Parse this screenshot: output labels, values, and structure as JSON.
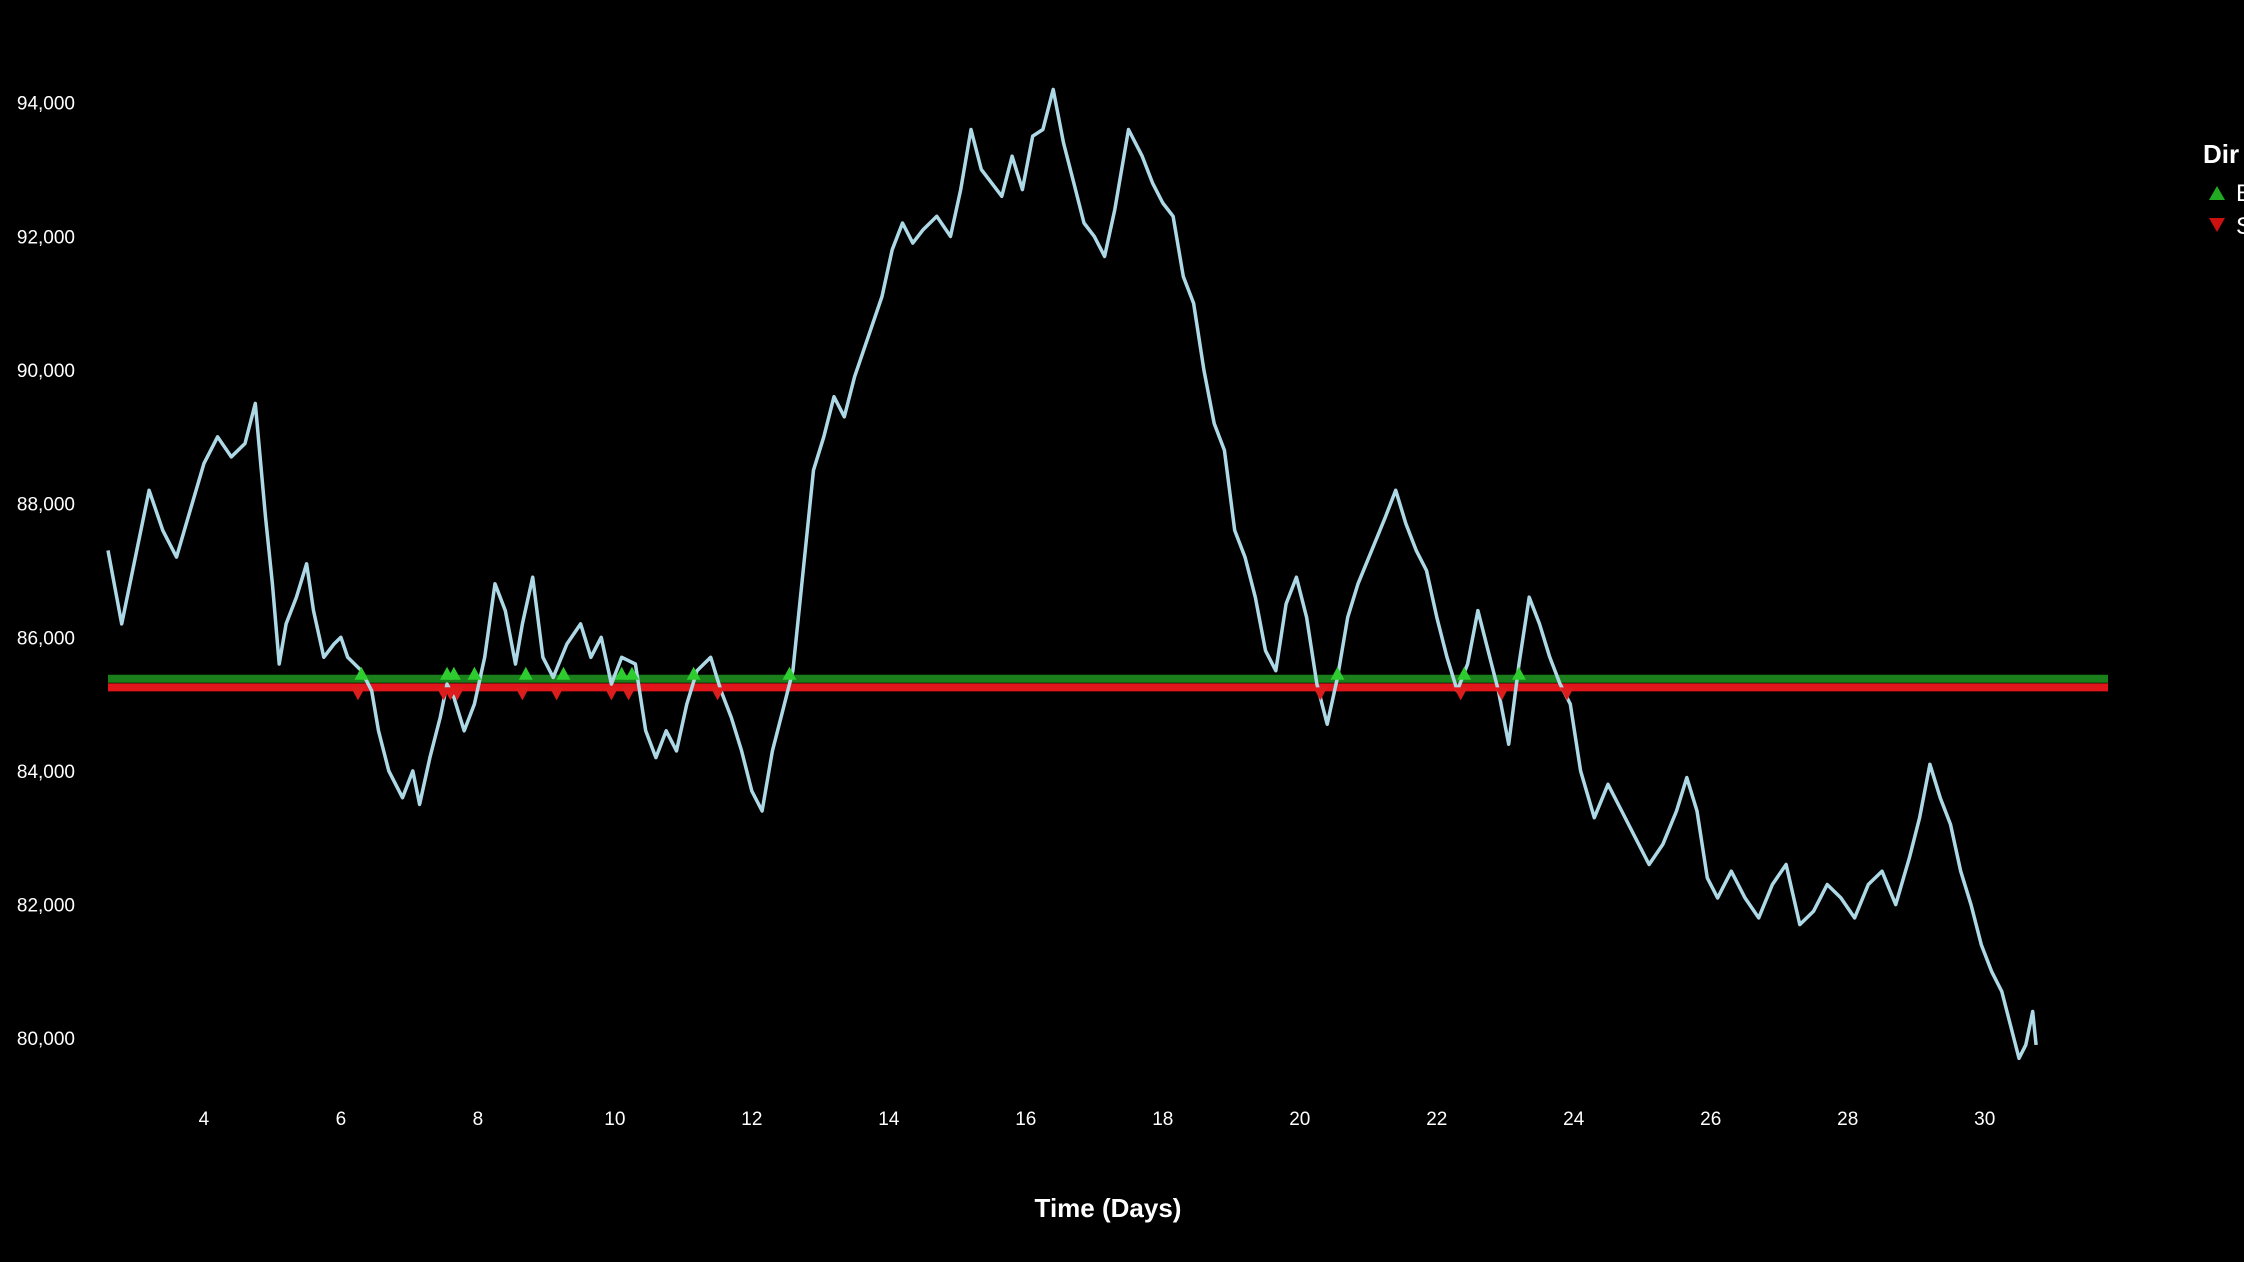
{
  "chart_data": {
    "type": "line",
    "title": "",
    "xlabel": "Time (Days)",
    "ylabel": "",
    "xlim": [
      2.6,
      31.8
    ],
    "ylim": [
      79300,
      94400
    ],
    "x_ticks": [
      4,
      6,
      8,
      10,
      12,
      14,
      16,
      18,
      20,
      22,
      24,
      26,
      28,
      30
    ],
    "x_tick_labels": [
      "4",
      "6",
      "8",
      "10",
      "12",
      "14",
      "16",
      "18",
      "20",
      "22",
      "24",
      "26",
      "28",
      "30"
    ],
    "y_ticks": [
      80000,
      82000,
      84000,
      86000,
      88000,
      90000,
      92000,
      94000
    ],
    "y_tick_labels": [
      "80,000",
      "82,000",
      "84,000",
      "86,000",
      "88,000",
      "90,000",
      "92,000",
      "94,000"
    ],
    "grid": false,
    "background": "#000000",
    "legend": {
      "title": "Dir",
      "placement": "right",
      "entries": [
        {
          "label": "B",
          "marker": "triangle-up",
          "color": "#22aa22"
        },
        {
          "label": "S",
          "marker": "triangle-down",
          "color": "#cc1111"
        }
      ]
    },
    "price_series": {
      "name": "",
      "color": "#add8e6",
      "points": [
        [
          2.6,
          87300
        ],
        [
          2.8,
          86200
        ],
        [
          3.0,
          87200
        ],
        [
          3.2,
          88200
        ],
        [
          3.4,
          87600
        ],
        [
          3.6,
          87200
        ],
        [
          3.8,
          87900
        ],
        [
          4.0,
          88600
        ],
        [
          4.2,
          89000
        ],
        [
          4.4,
          88700
        ],
        [
          4.6,
          88900
        ],
        [
          4.75,
          89500
        ],
        [
          4.9,
          87800
        ],
        [
          5.0,
          86800
        ],
        [
          5.1,
          85600
        ],
        [
          5.2,
          86200
        ],
        [
          5.35,
          86600
        ],
        [
          5.5,
          87100
        ],
        [
          5.6,
          86400
        ],
        [
          5.75,
          85700
        ],
        [
          5.9,
          85900
        ],
        [
          6.0,
          86000
        ],
        [
          6.1,
          85700
        ],
        [
          6.3,
          85500
        ],
        [
          6.45,
          85200
        ],
        [
          6.55,
          84600
        ],
        [
          6.7,
          84000
        ],
        [
          6.9,
          83600
        ],
        [
          7.05,
          84000
        ],
        [
          7.15,
          83500
        ],
        [
          7.3,
          84200
        ],
        [
          7.45,
          84800
        ],
        [
          7.55,
          85300
        ],
        [
          7.65,
          85100
        ],
        [
          7.8,
          84600
        ],
        [
          7.95,
          85000
        ],
        [
          8.1,
          85700
        ],
        [
          8.25,
          86800
        ],
        [
          8.4,
          86400
        ],
        [
          8.55,
          85600
        ],
        [
          8.65,
          86200
        ],
        [
          8.8,
          86900
        ],
        [
          8.95,
          85700
        ],
        [
          9.1,
          85400
        ],
        [
          9.3,
          85900
        ],
        [
          9.5,
          86200
        ],
        [
          9.65,
          85700
        ],
        [
          9.8,
          86000
        ],
        [
          9.95,
          85300
        ],
        [
          10.1,
          85700
        ],
        [
          10.3,
          85600
        ],
        [
          10.45,
          84600
        ],
        [
          10.6,
          84200
        ],
        [
          10.75,
          84600
        ],
        [
          10.9,
          84300
        ],
        [
          11.05,
          85000
        ],
        [
          11.2,
          85500
        ],
        [
          11.4,
          85700
        ],
        [
          11.55,
          85200
        ],
        [
          11.7,
          84800
        ],
        [
          11.85,
          84300
        ],
        [
          12.0,
          83700
        ],
        [
          12.15,
          83400
        ],
        [
          12.3,
          84300
        ],
        [
          12.45,
          84900
        ],
        [
          12.6,
          85500
        ],
        [
          12.75,
          87000
        ],
        [
          12.9,
          88500
        ],
        [
          13.05,
          89000
        ],
        [
          13.2,
          89600
        ],
        [
          13.35,
          89300
        ],
        [
          13.5,
          89900
        ],
        [
          13.7,
          90500
        ],
        [
          13.9,
          91100
        ],
        [
          14.05,
          91800
        ],
        [
          14.2,
          92200
        ],
        [
          14.35,
          91900
        ],
        [
          14.5,
          92100
        ],
        [
          14.7,
          92300
        ],
        [
          14.9,
          92000
        ],
        [
          15.05,
          92700
        ],
        [
          15.2,
          93600
        ],
        [
          15.35,
          93000
        ],
        [
          15.5,
          92800
        ],
        [
          15.65,
          92600
        ],
        [
          15.8,
          93200
        ],
        [
          15.95,
          92700
        ],
        [
          16.1,
          93500
        ],
        [
          16.25,
          93600
        ],
        [
          16.4,
          94200
        ],
        [
          16.55,
          93400
        ],
        [
          16.7,
          92800
        ],
        [
          16.85,
          92200
        ],
        [
          17.0,
          92000
        ],
        [
          17.15,
          91700
        ],
        [
          17.3,
          92400
        ],
        [
          17.5,
          93600
        ],
        [
          17.7,
          93200
        ],
        [
          17.85,
          92800
        ],
        [
          18.0,
          92500
        ],
        [
          18.15,
          92300
        ],
        [
          18.3,
          91400
        ],
        [
          18.45,
          91000
        ],
        [
          18.6,
          90000
        ],
        [
          18.75,
          89200
        ],
        [
          18.9,
          88800
        ],
        [
          19.05,
          87600
        ],
        [
          19.2,
          87200
        ],
        [
          19.35,
          86600
        ],
        [
          19.5,
          85800
        ],
        [
          19.65,
          85500
        ],
        [
          19.8,
          86500
        ],
        [
          19.95,
          86900
        ],
        [
          20.1,
          86300
        ],
        [
          20.25,
          85300
        ],
        [
          20.4,
          84700
        ],
        [
          20.55,
          85400
        ],
        [
          20.7,
          86300
        ],
        [
          20.85,
          86800
        ],
        [
          21.05,
          87300
        ],
        [
          21.25,
          87800
        ],
        [
          21.4,
          88200
        ],
        [
          21.55,
          87700
        ],
        [
          21.7,
          87300
        ],
        [
          21.85,
          87000
        ],
        [
          22.0,
          86300
        ],
        [
          22.15,
          85700
        ],
        [
          22.3,
          85200
        ],
        [
          22.45,
          85600
        ],
        [
          22.6,
          86400
        ],
        [
          22.75,
          85800
        ],
        [
          22.9,
          85200
        ],
        [
          23.05,
          84400
        ],
        [
          23.2,
          85600
        ],
        [
          23.35,
          86600
        ],
        [
          23.5,
          86200
        ],
        [
          23.65,
          85700
        ],
        [
          23.8,
          85300
        ],
        [
          23.95,
          85000
        ],
        [
          24.1,
          84000
        ],
        [
          24.3,
          83300
        ],
        [
          24.5,
          83800
        ],
        [
          24.7,
          83400
        ],
        [
          24.9,
          83000
        ],
        [
          25.1,
          82600
        ],
        [
          25.3,
          82900
        ],
        [
          25.5,
          83400
        ],
        [
          25.65,
          83900
        ],
        [
          25.8,
          83400
        ],
        [
          25.95,
          82400
        ],
        [
          26.1,
          82100
        ],
        [
          26.3,
          82500
        ],
        [
          26.5,
          82100
        ],
        [
          26.7,
          81800
        ],
        [
          26.9,
          82300
        ],
        [
          27.1,
          82600
        ],
        [
          27.3,
          81700
        ],
        [
          27.5,
          81900
        ],
        [
          27.7,
          82300
        ],
        [
          27.9,
          82100
        ],
        [
          28.1,
          81800
        ],
        [
          28.3,
          82300
        ],
        [
          28.5,
          82500
        ],
        [
          28.7,
          82000
        ],
        [
          28.9,
          82700
        ],
        [
          29.05,
          83300
        ],
        [
          29.2,
          84100
        ],
        [
          29.35,
          83600
        ],
        [
          29.5,
          83200
        ],
        [
          29.65,
          82500
        ],
        [
          29.8,
          82000
        ],
        [
          29.95,
          81400
        ],
        [
          30.1,
          81000
        ],
        [
          30.25,
          80700
        ],
        [
          30.4,
          80100
        ],
        [
          30.5,
          79700
        ],
        [
          30.6,
          79900
        ],
        [
          30.7,
          80400
        ],
        [
          30.75,
          79900
        ]
      ]
    },
    "reference_lines": [
      {
        "name": "",
        "value": 85380,
        "color": "#1b7f1b"
      },
      {
        "name": "",
        "value": 85250,
        "color": "#e0161b"
      }
    ],
    "buy_markers": {
      "name": "B",
      "color": "#2ecc2e",
      "x": [
        6.3,
        7.55,
        7.65,
        7.95,
        8.7,
        9.25,
        10.1,
        10.25,
        11.15,
        12.55,
        20.55,
        22.4,
        23.2
      ]
    },
    "sell_markers": {
      "name": "S",
      "color": "#dd1c1c",
      "x": [
        6.25,
        7.5,
        7.6,
        7.7,
        8.65,
        9.15,
        9.95,
        10.2,
        11.5,
        20.3,
        22.35,
        22.95,
        23.9
      ]
    }
  }
}
